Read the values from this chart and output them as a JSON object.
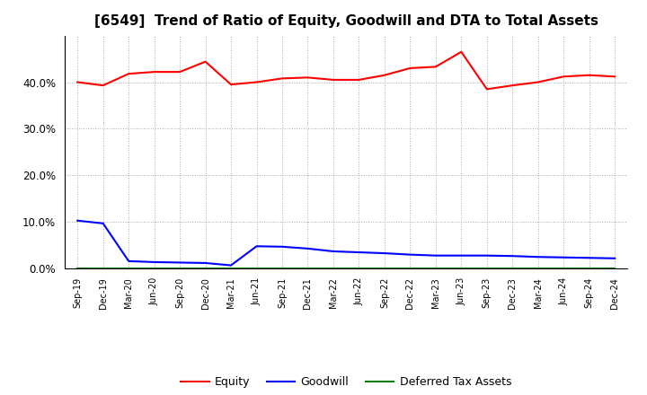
{
  "title": "[6549]  Trend of Ratio of Equity, Goodwill and DTA to Total Assets",
  "x_labels": [
    "Sep-19",
    "Dec-19",
    "Mar-20",
    "Jun-20",
    "Sep-20",
    "Dec-20",
    "Mar-21",
    "Jun-21",
    "Sep-21",
    "Dec-21",
    "Mar-22",
    "Jun-22",
    "Sep-22",
    "Dec-22",
    "Mar-23",
    "Jun-23",
    "Sep-23",
    "Dec-23",
    "Mar-24",
    "Jun-24",
    "Sep-24",
    "Dec-24"
  ],
  "equity": [
    0.4,
    0.393,
    0.418,
    0.422,
    0.422,
    0.444,
    0.395,
    0.4,
    0.408,
    0.41,
    0.405,
    0.405,
    0.415,
    0.43,
    0.433,
    0.465,
    0.385,
    0.393,
    0.4,
    0.412,
    0.415,
    0.412
  ],
  "goodwill": [
    0.103,
    0.097,
    0.016,
    0.014,
    0.013,
    0.012,
    0.007,
    0.048,
    0.047,
    0.043,
    0.037,
    0.035,
    0.033,
    0.03,
    0.028,
    0.028,
    0.028,
    0.027,
    0.025,
    0.024,
    0.023,
    0.022
  ],
  "dta": [
    0.001,
    0.001,
    0.001,
    0.001,
    0.001,
    0.001,
    0.001,
    0.001,
    0.001,
    0.001,
    0.001,
    0.001,
    0.001,
    0.001,
    0.001,
    0.001,
    0.001,
    0.001,
    0.001,
    0.001,
    0.001,
    0.001
  ],
  "equity_color": "#ff0000",
  "goodwill_color": "#0000ff",
  "dta_color": "#008000",
  "background_color": "#ffffff",
  "grid_color": "#aaaaaa",
  "ylim": [
    0.0,
    0.5
  ],
  "yticks": [
    0.0,
    0.1,
    0.2,
    0.3,
    0.4
  ],
  "title_fontsize": 11,
  "legend_labels": [
    "Equity",
    "Goodwill",
    "Deferred Tax Assets"
  ]
}
